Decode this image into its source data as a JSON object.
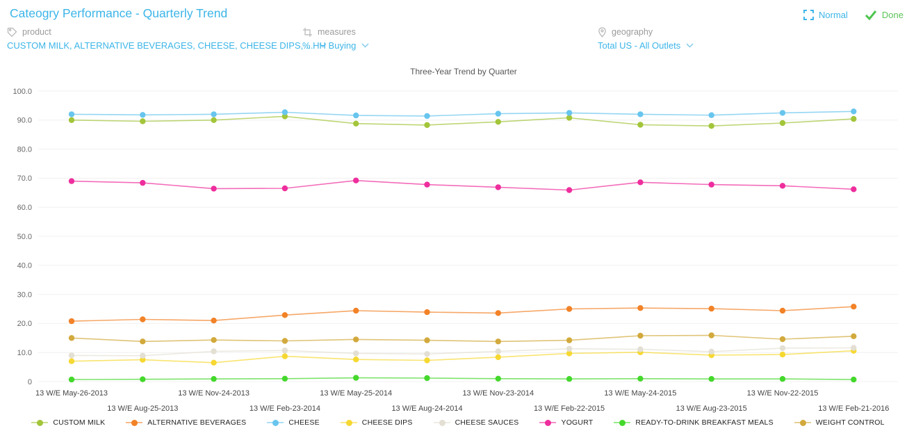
{
  "header": {
    "title": "Cateogry Performance - Quarterly Trend",
    "normal_label": "Normal",
    "done_label": "Done"
  },
  "filters": {
    "product": {
      "label": "product",
      "value": "CUSTOM MILK, ALTERNATIVE BEVERAGES, CHEESE, CHEESE DIPS, ..."
    },
    "measures": {
      "label": "measures",
      "value": "% HH Buying"
    },
    "geography": {
      "label": "geography",
      "value": "Total US - All Outlets"
    }
  },
  "colors": {
    "accent_blue": "#3cb5e8",
    "done_green": "#5cc45c",
    "label_gray": "#9b9b9b",
    "gridline": "#f0f0f0",
    "axis_text": "#666666"
  },
  "chart_data": {
    "type": "line",
    "title": "Three-Year Trend by Quarter",
    "ylabel": "",
    "xlabel": "",
    "ylim": [
      0,
      100
    ],
    "grid": "horizontal",
    "legend_position": "bottom",
    "ytick_labels": [
      "100.0",
      "90.0",
      "80.0",
      "70.0",
      "60.0",
      "50.0",
      "40.0",
      "30.0",
      "20.0",
      "10.0",
      "0"
    ],
    "categories": [
      "13 W/E May-26-2013",
      "13 W/E Aug-25-2013",
      "13 W/E Nov-24-2013",
      "13 W/E Feb-23-2014",
      "13 W/E May-25-2014",
      "13 W/E Aug-24-2014",
      "13 W/E Nov-23-2014",
      "13 W/E Feb-22-2015",
      "13 W/E May-24-2015",
      "13 W/E Aug-23-2015",
      "13 W/E Nov-22-2015",
      "13 W/E Feb-21-2016"
    ],
    "series": [
      {
        "name": "CUSTOM MILK",
        "color": "#a3c53a",
        "values": [
          90.0,
          89.6,
          90.0,
          91.3,
          88.8,
          88.3,
          89.4,
          90.8,
          88.4,
          88.0,
          89.0,
          90.4
        ]
      },
      {
        "name": "ALTERNATIVE BEVERAGES",
        "color": "#f28227",
        "values": [
          20.8,
          21.4,
          21.0,
          22.9,
          24.4,
          23.9,
          23.6,
          25.0,
          25.3,
          25.1,
          24.4,
          25.8
        ]
      },
      {
        "name": "CHEESE",
        "color": "#68c5ee",
        "values": [
          92.0,
          91.8,
          92.0,
          92.7,
          91.6,
          91.4,
          92.2,
          92.5,
          92.0,
          91.7,
          92.5,
          93.0
        ]
      },
      {
        "name": "CHEESE DIPS",
        "color": "#f6d832",
        "values": [
          7.0,
          7.5,
          6.5,
          8.7,
          7.6,
          7.3,
          8.4,
          9.7,
          10.1,
          9.1,
          9.3,
          10.6
        ]
      },
      {
        "name": "CHEESE SAUCES",
        "color": "#e3dfd3",
        "values": [
          9.0,
          8.9,
          10.4,
          10.7,
          9.7,
          9.5,
          10.4,
          11.3,
          11.1,
          10.3,
          11.5,
          11.6
        ]
      },
      {
        "name": "YOGURT",
        "color": "#ee2e9d",
        "values": [
          69.0,
          68.4,
          66.4,
          66.5,
          69.2,
          67.8,
          66.9,
          65.9,
          68.6,
          67.8,
          67.4,
          66.2
        ]
      },
      {
        "name": "READY-TO-DRINK BREAKFAST MEALS",
        "color": "#44d82c",
        "values": [
          0.7,
          0.8,
          0.9,
          1.0,
          1.3,
          1.2,
          1.0,
          0.9,
          1.0,
          0.9,
          0.9,
          0.7
        ]
      },
      {
        "name": "WEIGHT CONTROL",
        "color": "#d2a93c",
        "values": [
          15.0,
          13.8,
          14.3,
          14.0,
          14.5,
          14.2,
          13.8,
          14.2,
          15.8,
          15.9,
          14.6,
          15.6
        ]
      }
    ]
  }
}
